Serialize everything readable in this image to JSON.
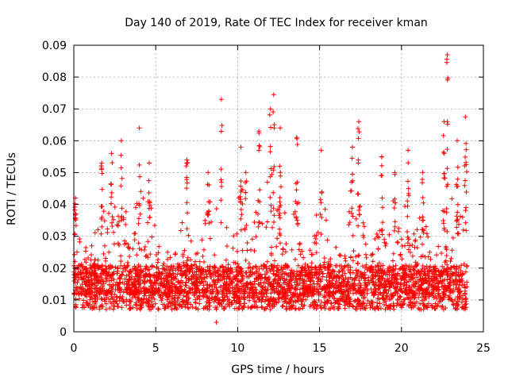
{
  "chart_data": {
    "type": "scatter",
    "title": "Day 140 of 2019, Rate Of TEC Index for receiver kman",
    "xlabel": "GPS time / hours",
    "ylabel": "ROTI / TECUs",
    "xlim": [
      0,
      25
    ],
    "ylim": [
      0,
      0.09
    ],
    "xticks": [
      0,
      5,
      10,
      15,
      20,
      25
    ],
    "xtick_labels": [
      "0",
      "5",
      "10",
      "15",
      "20",
      "25"
    ],
    "yticks": [
      0,
      0.01,
      0.02,
      0.03,
      0.04,
      0.05,
      0.06,
      0.07,
      0.08,
      0.09
    ],
    "ytick_labels": [
      "0",
      "0.01",
      "0.02",
      "0.03",
      "0.04",
      "0.05",
      "0.06",
      "0.07",
      "0.08",
      "0.09"
    ],
    "grid": true,
    "marker": "+",
    "color": "#ff0000",
    "series": [
      {
        "name": "ROTI",
        "x_range": [
          0,
          24
        ],
        "typical_range": [
          0.005,
          0.03
        ],
        "peaks": [
          {
            "x": 0.1,
            "y": 0.042
          },
          {
            "x": 1.7,
            "y": 0.053
          },
          {
            "x": 2.3,
            "y": 0.056
          },
          {
            "x": 2.9,
            "y": 0.06
          },
          {
            "x": 4.0,
            "y": 0.064
          },
          {
            "x": 4.6,
            "y": 0.053
          },
          {
            "x": 6.9,
            "y": 0.054
          },
          {
            "x": 8.2,
            "y": 0.05
          },
          {
            "x": 9.0,
            "y": 0.073
          },
          {
            "x": 10.2,
            "y": 0.058
          },
          {
            "x": 10.5,
            "y": 0.05
          },
          {
            "x": 11.3,
            "y": 0.063
          },
          {
            "x": 12.0,
            "y": 0.07
          },
          {
            "x": 12.2,
            "y": 0.0745
          },
          {
            "x": 12.6,
            "y": 0.064
          },
          {
            "x": 13.6,
            "y": 0.061
          },
          {
            "x": 15.1,
            "y": 0.057
          },
          {
            "x": 17.0,
            "y": 0.058
          },
          {
            "x": 17.4,
            "y": 0.066
          },
          {
            "x": 18.8,
            "y": 0.055
          },
          {
            "x": 19.6,
            "y": 0.05
          },
          {
            "x": 20.4,
            "y": 0.057
          },
          {
            "x": 21.3,
            "y": 0.05
          },
          {
            "x": 22.6,
            "y": 0.066
          },
          {
            "x": 22.8,
            "y": 0.087
          },
          {
            "x": 23.4,
            "y": 0.06
          },
          {
            "x": 23.9,
            "y": 0.0675
          }
        ],
        "minimum": {
          "x": 8.7,
          "y": 0.003
        }
      }
    ]
  }
}
